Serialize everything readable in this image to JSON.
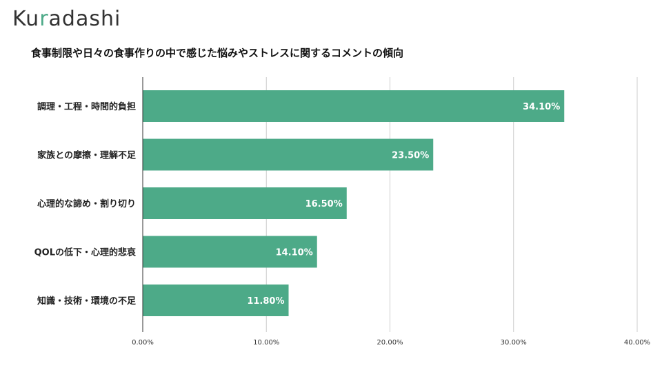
{
  "logo": {
    "text_before": "Ku",
    "dot": "r",
    "text_after": "adashi",
    "brand_color": "#4daa88"
  },
  "chart_data": {
    "type": "bar",
    "orientation": "horizontal",
    "title": "食事制限や日々の食事作りの中で感じた悩みやストレスに関するコメントの傾向",
    "categories": [
      "調理・工程・時間的負担",
      "家族との摩擦・理解不足",
      "心理的な諦め・割り切り",
      "QOLの低下・心理的悲哀",
      "知識・技術・環境の不足"
    ],
    "values": [
      34.1,
      23.5,
      16.5,
      14.1,
      11.8
    ],
    "value_labels": [
      "34.10%",
      "23.50%",
      "16.50%",
      "14.10%",
      "11.80%"
    ],
    "xlim": [
      0,
      40
    ],
    "xticks": [
      0,
      10,
      20,
      30,
      40
    ],
    "xtick_labels": [
      "0.00%",
      "10.00%",
      "20.00%",
      "30.00%",
      "40.00%"
    ],
    "xlabel": "",
    "ylabel": "",
    "grid": true,
    "bar_color": "#4daa88",
    "grid_color": "#cccccc"
  }
}
